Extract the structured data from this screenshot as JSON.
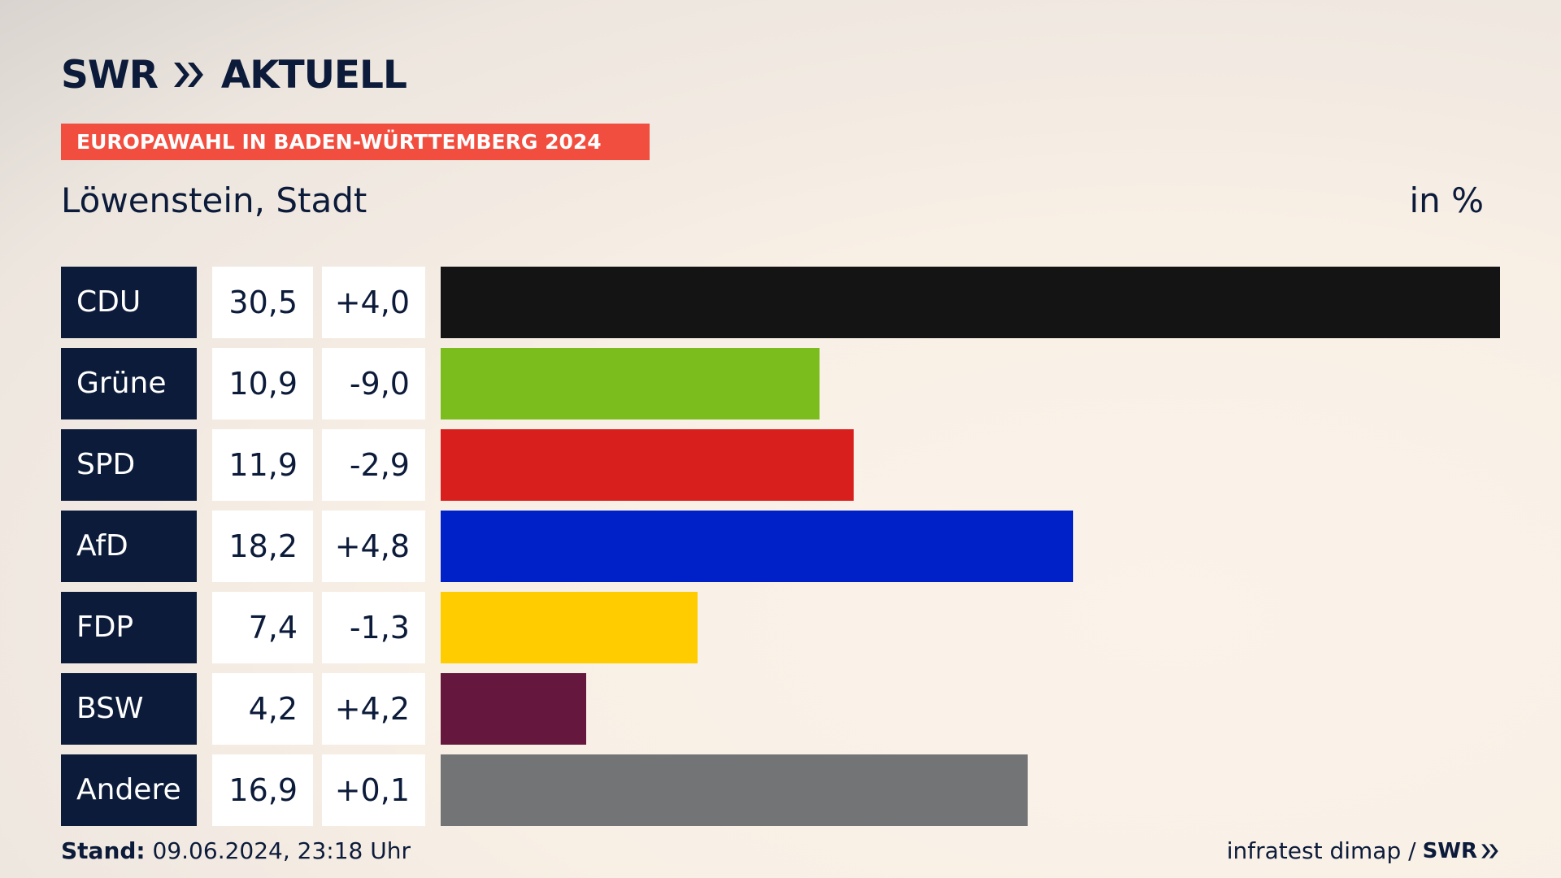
{
  "brand": {
    "name": "SWR",
    "product": "AKTUELL"
  },
  "banner": "EUROPAWAHL IN BADEN-WÜRTTEMBERG 2024",
  "subtitle": "Löwenstein, Stadt",
  "unit_label": "in %",
  "footer": {
    "stand_label": "Stand:",
    "stand_value": "09.06.2024, 23:18 Uhr",
    "source": "infratest dimap /",
    "source_logo": "SWR"
  },
  "colors": {
    "navy": "#0c1b3a",
    "banner": "#f24e3f"
  },
  "chart_data": {
    "type": "bar",
    "orientation": "horizontal",
    "unit": "in %",
    "categories": [
      "CDU",
      "Grüne",
      "SPD",
      "AfD",
      "FDP",
      "BSW",
      "Andere"
    ],
    "values": [
      30.5,
      10.9,
      11.9,
      18.2,
      7.4,
      4.2,
      16.9
    ],
    "value_labels": [
      "30,5",
      "10,9",
      "11,9",
      "18,2",
      "7,4",
      "4,2",
      "16,9"
    ],
    "changes": [
      "+4,0",
      "-9,0",
      "-2,9",
      "+4,8",
      "-1,3",
      "+4,2",
      "+0,1"
    ],
    "bar_colors": [
      "#141414",
      "#7abd1d",
      "#d91e1e",
      "#0020c8",
      "#ffcc00",
      "#66173e",
      "#737476"
    ],
    "xlim": [
      0,
      30.5
    ]
  }
}
